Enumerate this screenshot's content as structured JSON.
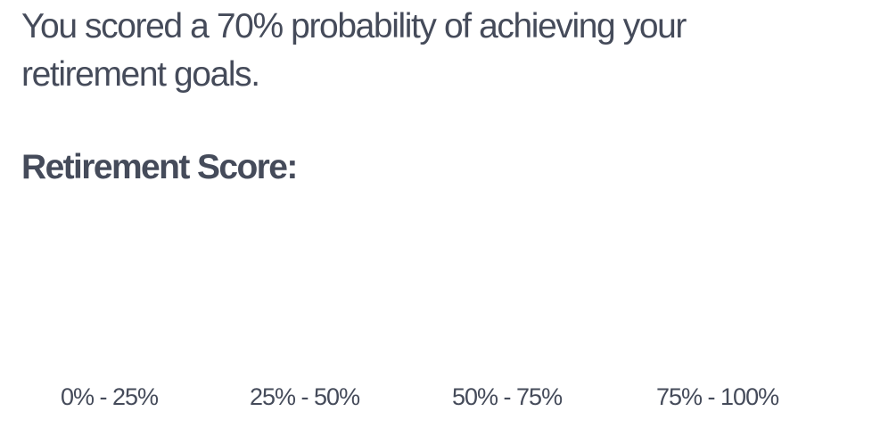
{
  "result": {
    "message": "You scored a 70% probability of achieving your retirement goals."
  },
  "score": {
    "heading": "Retirement Score:",
    "ranges": [
      "0% - 25%",
      "25% - 50%",
      "50% - 75%",
      "75% - 100%"
    ]
  }
}
